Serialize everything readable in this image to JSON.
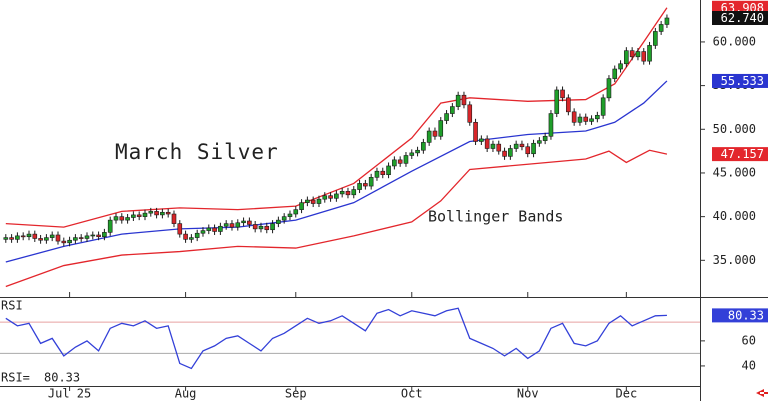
{
  "chart_data": [
    {
      "type": "candlestick",
      "annotations": [
        "March Silver",
        "Bollinger Bands"
      ],
      "categories": [
        null,
        null,
        null,
        null,
        null,
        null,
        null,
        null,
        null,
        null,
        null,
        null,
        null,
        null,
        null,
        null,
        null,
        null,
        null,
        null,
        null,
        null,
        null,
        null,
        null,
        null,
        null,
        null,
        null,
        null,
        null,
        null,
        null,
        null,
        null,
        null,
        null,
        null,
        null,
        null,
        null,
        null,
        null,
        null,
        null,
        null,
        null,
        null,
        null,
        null,
        null,
        null,
        null,
        null,
        null,
        null,
        null,
        null,
        null,
        null,
        null,
        null,
        null,
        null,
        null,
        null,
        null,
        null,
        null,
        null,
        null,
        null,
        null,
        null,
        null,
        null,
        null,
        null,
        null,
        null,
        null,
        null,
        null,
        null,
        null,
        null,
        null,
        null,
        null,
        null,
        null,
        null,
        null,
        null,
        null,
        null,
        null,
        null,
        null,
        null,
        null,
        null,
        null,
        null,
        null,
        null,
        null,
        null,
        null,
        null,
        null,
        null,
        null,
        null,
        null
      ],
      "open": [
        37.4,
        37.6,
        37.4,
        37.8,
        37.7,
        38.0,
        37.5,
        37.3,
        37.6,
        37.9,
        37.2,
        37.0,
        37.3,
        37.6,
        37.5,
        37.8,
        37.9,
        37.7,
        38.2,
        39.6,
        40.0,
        39.6,
        39.9,
        40.2,
        40.0,
        40.4,
        40.6,
        40.2,
        40.5,
        40.3,
        39.2,
        38.0,
        37.4,
        37.6,
        38.1,
        38.4,
        38.7,
        38.3,
        38.9,
        39.2,
        38.8,
        39.3,
        39.5,
        39.1,
        38.6,
        38.9,
        38.5,
        39.2,
        39.6,
        40.0,
        40.3,
        40.8,
        41.6,
        41.9,
        41.5,
        42.0,
        42.4,
        42.1,
        42.6,
        42.9,
        42.5,
        43.1,
        43.8,
        43.5,
        44.5,
        45.2,
        44.8,
        45.8,
        46.5,
        46.1,
        47.0,
        47.3,
        47.6,
        48.5,
        49.8,
        49.2,
        51.0,
        51.8,
        52.6,
        53.9,
        52.8,
        50.8,
        48.6,
        48.9,
        47.8,
        48.3,
        47.5,
        46.9,
        47.8,
        48.3,
        48.0,
        47.2,
        48.4,
        48.7,
        49.2,
        51.8,
        54.5,
        53.6,
        52.0,
        50.8,
        51.4,
        50.9,
        51.2,
        51.6,
        53.6,
        55.8,
        56.9,
        57.5,
        59.0,
        58.3,
        58.9,
        57.8,
        59.6,
        61.2,
        62.0
      ],
      "high": [
        38.0,
        38.0,
        38.2,
        38.2,
        38.4,
        38.4,
        37.9,
        38.0,
        38.3,
        38.3,
        37.6,
        37.7,
        38.0,
        38.0,
        38.2,
        38.3,
        38.3,
        38.6,
        40.0,
        40.4,
        40.4,
        40.3,
        40.6,
        40.6,
        40.8,
        41.0,
        41.0,
        40.9,
        40.9,
        40.7,
        39.6,
        38.4,
        38.0,
        38.5,
        38.8,
        39.1,
        39.1,
        39.3,
        39.6,
        39.6,
        39.7,
        39.9,
        39.9,
        39.5,
        39.3,
        39.3,
        39.6,
        40.0,
        40.4,
        40.7,
        41.2,
        42.0,
        42.3,
        42.3,
        42.4,
        42.8,
        42.8,
        43.0,
        43.3,
        43.3,
        43.5,
        44.2,
        44.2,
        44.9,
        45.6,
        45.6,
        46.2,
        46.9,
        46.9,
        47.4,
        47.7,
        48.0,
        48.9,
        50.2,
        50.2,
        51.4,
        52.2,
        53.0,
        54.3,
        54.3,
        53.2,
        51.2,
        49.3,
        49.3,
        48.7,
        48.7,
        47.9,
        48.2,
        48.7,
        48.7,
        48.4,
        48.8,
        49.1,
        49.6,
        52.2,
        54.9,
        54.9,
        54.0,
        52.4,
        51.8,
        51.8,
        51.6,
        52.0,
        54.0,
        56.2,
        57.3,
        57.9,
        59.4,
        59.4,
        59.3,
        59.3,
        60.0,
        61.6,
        62.4,
        63.14
      ],
      "low": [
        37.0,
        37.0,
        37.0,
        37.3,
        37.3,
        37.1,
        36.9,
        36.9,
        37.2,
        36.8,
        36.6,
        36.6,
        36.9,
        37.1,
        37.1,
        37.4,
        37.3,
        37.3,
        37.8,
        39.2,
        39.2,
        39.2,
        39.5,
        39.6,
        39.6,
        40.0,
        39.8,
        39.8,
        39.9,
        38.8,
        37.6,
        37.0,
        37.0,
        37.2,
        37.7,
        38.0,
        37.9,
        37.9,
        38.5,
        38.4,
        38.4,
        38.9,
        38.7,
        38.2,
        38.2,
        38.1,
        38.1,
        38.8,
        39.2,
        39.6,
        39.9,
        40.4,
        41.2,
        41.1,
        41.1,
        41.6,
        41.7,
        41.7,
        42.2,
        42.1,
        42.1,
        42.7,
        43.1,
        43.1,
        44.1,
        44.4,
        44.4,
        45.4,
        45.7,
        45.7,
        46.6,
        46.9,
        47.2,
        48.1,
        48.8,
        48.8,
        50.6,
        51.4,
        52.2,
        52.4,
        50.4,
        48.2,
        48.2,
        47.4,
        47.4,
        47.1,
        46.5,
        46.5,
        47.4,
        47.6,
        46.8,
        46.8,
        48.0,
        48.3,
        48.8,
        51.4,
        53.2,
        51.6,
        50.4,
        50.4,
        50.5,
        50.5,
        50.8,
        51.2,
        53.2,
        55.4,
        56.5,
        57.1,
        57.9,
        57.9,
        57.4,
        57.4,
        59.2,
        60.8,
        61.6
      ],
      "close": [
        37.6,
        37.4,
        37.8,
        37.7,
        38.0,
        37.5,
        37.3,
        37.6,
        37.9,
        37.2,
        37.0,
        37.3,
        37.6,
        37.5,
        37.8,
        37.9,
        37.7,
        38.2,
        39.6,
        40.0,
        39.6,
        39.9,
        40.2,
        40.0,
        40.4,
        40.6,
        40.2,
        40.5,
        40.3,
        39.2,
        38.0,
        37.4,
        37.6,
        38.1,
        38.4,
        38.7,
        38.3,
        38.9,
        39.2,
        38.8,
        39.3,
        39.5,
        39.1,
        38.6,
        38.9,
        38.5,
        39.2,
        39.6,
        40.0,
        40.3,
        40.8,
        41.6,
        41.9,
        41.5,
        42.0,
        42.4,
        42.1,
        42.6,
        42.9,
        42.5,
        43.1,
        43.8,
        43.5,
        44.5,
        45.2,
        44.8,
        45.8,
        46.5,
        46.1,
        47.0,
        47.3,
        47.6,
        48.5,
        49.8,
        49.2,
        51.0,
        51.8,
        52.6,
        53.9,
        52.8,
        50.8,
        48.6,
        48.9,
        47.8,
        48.3,
        47.5,
        46.9,
        47.8,
        48.3,
        48.0,
        47.2,
        48.4,
        48.7,
        49.2,
        51.8,
        54.5,
        53.6,
        52.0,
        50.8,
        51.4,
        50.9,
        51.2,
        51.6,
        53.6,
        55.8,
        56.9,
        57.5,
        59.0,
        58.3,
        58.9,
        57.8,
        59.6,
        61.2,
        62.0,
        62.74
      ],
      "last_close_label": "62.740",
      "up_color": "#1f9e2a",
      "down_color": "#d8262a",
      "last_close_color": "#111111",
      "lines": [
        {
          "color": "#e3262c",
          "x": [
            0,
            10,
            20,
            30,
            40,
            50,
            60,
            70,
            75,
            80,
            90,
            100,
            105,
            110,
            114
          ],
          "values": [
            39.2,
            38.8,
            40.6,
            41.0,
            40.8,
            41.2,
            43.8,
            49.0,
            53.0,
            53.6,
            53.2,
            53.4,
            55.2,
            60.0,
            63.908
          ]
        },
        {
          "color": "#2a35d0",
          "x": [
            0,
            10,
            20,
            30,
            40,
            50,
            60,
            70,
            80,
            90,
            100,
            105,
            110,
            114
          ],
          "values": [
            34.8,
            36.6,
            38.0,
            38.6,
            38.8,
            39.6,
            41.6,
            45.2,
            48.6,
            49.4,
            49.8,
            50.8,
            53.0,
            55.533
          ]
        },
        {
          "color": "#e3262c",
          "x": [
            0,
            10,
            20,
            30,
            40,
            50,
            60,
            70,
            75,
            80,
            90,
            100,
            104,
            107,
            111,
            114
          ],
          "values": [
            32.0,
            34.4,
            35.6,
            36.0,
            36.6,
            36.4,
            37.8,
            39.4,
            41.8,
            45.4,
            46.0,
            46.6,
            47.5,
            46.2,
            47.6,
            47.157
          ]
        }
      ],
      "xlim": [
        -1,
        119.7
      ],
      "ylim": [
        30.8,
        64.8
      ],
      "yticks": [
        {
          "value": 60,
          "label": "60.000"
        },
        {
          "value": 55,
          "label": "55.000"
        },
        {
          "value": 50,
          "label": "50.000"
        },
        {
          "value": 45,
          "label": "45.000"
        },
        {
          "value": 40,
          "label": "40.000"
        },
        {
          "value": 35,
          "label": "35.000"
        }
      ]
    },
    {
      "type": "line",
      "label": "RSI",
      "readout_label": "RSI=",
      "color": "#3340d8",
      "x": [
        0,
        2,
        4,
        6,
        8,
        10,
        12,
        14,
        16,
        18,
        20,
        22,
        24,
        26,
        28,
        30,
        32,
        34,
        36,
        38,
        40,
        42,
        44,
        46,
        48,
        50,
        52,
        54,
        56,
        58,
        60,
        62,
        64,
        66,
        68,
        70,
        72,
        74,
        76,
        78,
        80,
        82,
        84,
        86,
        88,
        90,
        92,
        94,
        96,
        98,
        100,
        102,
        104,
        106,
        108,
        110,
        112,
        114
      ],
      "values": [
        78,
        72,
        74,
        58,
        62,
        48,
        55,
        60,
        52,
        70,
        74,
        72,
        76,
        70,
        72,
        42,
        38,
        52,
        56,
        62,
        64,
        58,
        52,
        62,
        66,
        72,
        78,
        74,
        76,
        80,
        74,
        68,
        82,
        85,
        80,
        84,
        82,
        80,
        84,
        86,
        62,
        58,
        54,
        48,
        54,
        46,
        52,
        70,
        74,
        58,
        56,
        60,
        74,
        80,
        72,
        76,
        80,
        80.33
      ],
      "levels": [
        75,
        50
      ],
      "xlim": [
        -1,
        119.7
      ],
      "ylim": [
        20,
        95
      ],
      "yticks": [
        60,
        40
      ],
      "xticks": [
        {
          "value": 11,
          "label": "Jul 25"
        },
        {
          "value": 31,
          "label": "Aug"
        },
        {
          "value": 50,
          "label": "Sep"
        },
        {
          "value": 70,
          "label": "Oct"
        },
        {
          "value": 90,
          "label": "Nov"
        },
        {
          "value": 107,
          "label": "Dec"
        }
      ]
    }
  ]
}
